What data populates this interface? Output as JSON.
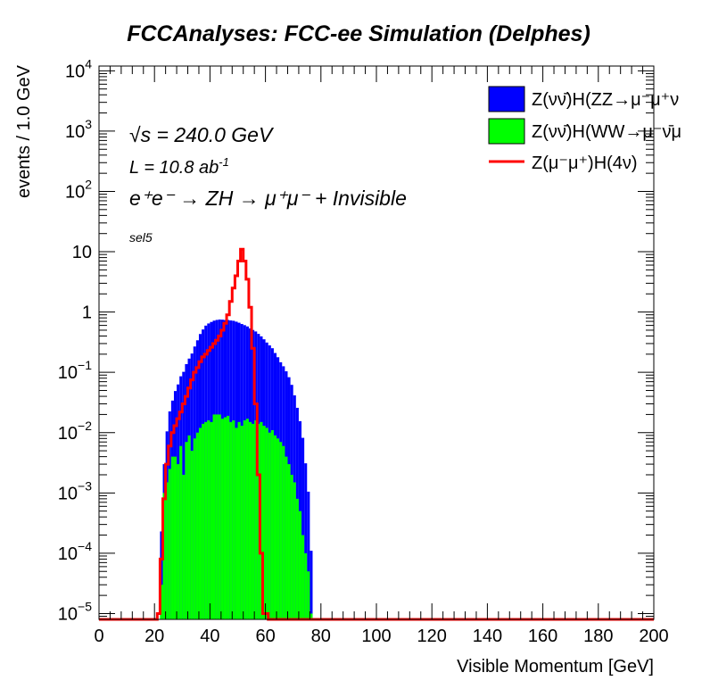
{
  "chart_data": {
    "type": "area",
    "title": "FCCAnalyses: FCC-ee Simulation (Delphes)",
    "xlabel": "Visible Momentum [GeV]",
    "ylabel": "events / 1.0 GeV",
    "xlim": [
      0,
      200
    ],
    "ylim": [
      8e-06,
      12000
    ],
    "yscale": "log",
    "x_ticks": [
      "0",
      "20",
      "40",
      "60",
      "80",
      "100",
      "120",
      "140",
      "160",
      "180",
      "200"
    ],
    "y_ticks": [
      {
        "base": "10",
        "exp": "4",
        "value": 10000
      },
      {
        "base": "10",
        "exp": "3",
        "value": 1000
      },
      {
        "base": "10",
        "exp": "2",
        "value": 100
      },
      {
        "base": "10",
        "exp": "",
        "value": 10
      },
      {
        "base": "1",
        "exp": "",
        "value": 1
      },
      {
        "base": "10",
        "exp": "−1",
        "value": 0.1
      },
      {
        "base": "10",
        "exp": "−2",
        "value": 0.01
      },
      {
        "base": "10",
        "exp": "−3",
        "value": 0.001
      },
      {
        "base": "10",
        "exp": "−4",
        "value": 0.0001
      },
      {
        "base": "10",
        "exp": "−5",
        "value": 1e-05
      }
    ],
    "annotations": {
      "energy": "√s = 240.0 GeV",
      "lumi": "L = 10.8 ab",
      "lumi_exp": "-1",
      "process": "e⁺e⁻ → ZH → μ⁺μ⁻ + Invisible",
      "selection": "sel5"
    },
    "legend_position": "top-right",
    "series": [
      {
        "name": "Z(νν̄)H(ZZ→μ⁻μ⁺ν",
        "style": "stacked-fill",
        "color": "#0000ff",
        "x": [
          22,
          23,
          24,
          25,
          26,
          27,
          28,
          29,
          30,
          31,
          32,
          33,
          34,
          35,
          36,
          37,
          38,
          39,
          40,
          41,
          42,
          43,
          44,
          45,
          46,
          47,
          48,
          49,
          50,
          51,
          52,
          53,
          54,
          55,
          56,
          57,
          58,
          59,
          60,
          61,
          62,
          63,
          64,
          65,
          66,
          67,
          68,
          69,
          70,
          71,
          72,
          73,
          74,
          75,
          76
        ],
        "values": [
          0.0002,
          0.002,
          0.009,
          0.02,
          0.03,
          0.045,
          0.06,
          0.08,
          0.1,
          0.13,
          0.16,
          0.2,
          0.26,
          0.33,
          0.42,
          0.5,
          0.58,
          0.63,
          0.67,
          0.7,
          0.72,
          0.73,
          0.73,
          0.72,
          0.72,
          0.71,
          0.7,
          0.68,
          0.65,
          0.62,
          0.59,
          0.56,
          0.52,
          0.49,
          0.46,
          0.42,
          0.38,
          0.34,
          0.3,
          0.27,
          0.24,
          0.2,
          0.17,
          0.14,
          0.12,
          0.1,
          0.08,
          0.06,
          0.04,
          0.025,
          0.015,
          0.008,
          0.003,
          0.001,
          0.0001
        ]
      },
      {
        "name": "Z(νν̄)H(WW→μ⁻ν̄μ",
        "style": "stacked-fill",
        "color": "#00ff00",
        "x": [
          22,
          23,
          24,
          25,
          26,
          27,
          28,
          29,
          30,
          31,
          32,
          33,
          34,
          35,
          36,
          37,
          38,
          39,
          40,
          41,
          42,
          43,
          44,
          45,
          46,
          47,
          48,
          49,
          50,
          51,
          52,
          53,
          54,
          55,
          56,
          57,
          58,
          59,
          60,
          61,
          62,
          63,
          64,
          65,
          66,
          67,
          68,
          69,
          70,
          71,
          72,
          73,
          74,
          75,
          76
        ],
        "values": [
          3e-05,
          0.001,
          0.0015,
          0.0025,
          0.004,
          0.004,
          0.003,
          0.006,
          0.002,
          0.007,
          0.009,
          0.005,
          0.008,
          0.01,
          0.012,
          0.014,
          0.015,
          0.016,
          0.015,
          0.02,
          0.02,
          0.02,
          0.017,
          0.018,
          0.019,
          0.015,
          0.016,
          0.012,
          0.015,
          0.013,
          0.016,
          0.017,
          0.015,
          0.014,
          0.016,
          0.014,
          0.015,
          0.013,
          0.012,
          0.01,
          0.011,
          0.009,
          0.008,
          0.007,
          0.006,
          0.004,
          0.003,
          0.002,
          0.0015,
          0.0008,
          0.0005,
          0.0002,
          0.0001,
          5e-05,
          1e-05
        ]
      },
      {
        "name": "Z(μ⁻μ⁺)H(4ν)",
        "style": "line",
        "color": "#ff0000",
        "x": [
          21,
          22,
          23,
          24,
          25,
          26,
          27,
          28,
          29,
          30,
          31,
          32,
          33,
          34,
          35,
          36,
          37,
          38,
          39,
          40,
          41,
          42,
          43,
          44,
          45,
          46,
          47,
          48,
          49,
          50,
          51,
          52,
          53,
          54,
          55,
          56,
          57,
          58,
          59,
          60
        ],
        "values": [
          1e-05,
          8e-05,
          0.0008,
          0.003,
          0.006,
          0.01,
          0.013,
          0.017,
          0.022,
          0.03,
          0.04,
          0.055,
          0.075,
          0.1,
          0.12,
          0.15,
          0.18,
          0.2,
          0.23,
          0.26,
          0.3,
          0.34,
          0.4,
          0.5,
          0.65,
          0.9,
          1.5,
          2.5,
          4,
          7,
          11,
          7,
          3.5,
          1.2,
          0.25,
          0.03,
          0.002,
          0.0001,
          1e-05,
          1e-05
        ]
      }
    ]
  }
}
